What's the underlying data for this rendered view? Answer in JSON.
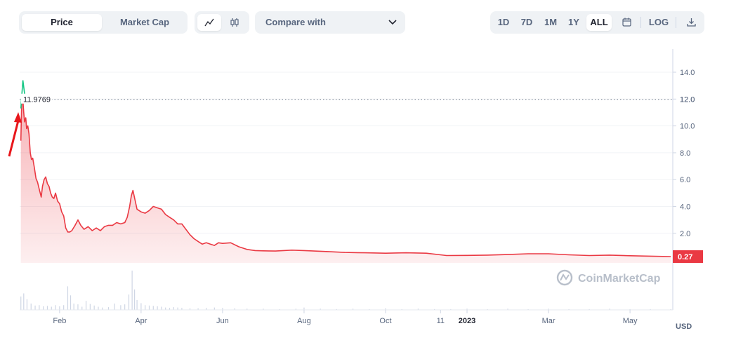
{
  "toolbar": {
    "view_tabs": [
      {
        "label": "Price",
        "active": true
      },
      {
        "label": "Market Cap",
        "active": false
      }
    ],
    "chart_types": [
      {
        "icon": "line-chart-icon",
        "active": true
      },
      {
        "icon": "candlestick-icon",
        "active": false
      }
    ],
    "compare_label": "Compare with",
    "ranges": [
      {
        "label": "1D",
        "active": false
      },
      {
        "label": "7D",
        "active": false
      },
      {
        "label": "1M",
        "active": false
      },
      {
        "label": "1Y",
        "active": false
      },
      {
        "label": "ALL",
        "active": true
      }
    ],
    "calendar_icon": "calendar-icon",
    "log_label": "LOG",
    "download_icon": "download-icon"
  },
  "colors": {
    "line": "#ea3943",
    "up": "#16c784",
    "fill": "#ea3943",
    "price_tag": "#ea3943",
    "volume": "#cfd6e4",
    "arrow": "#e8161b"
  },
  "watermark": "CoinMarketCap",
  "chart_data": {
    "type": "area",
    "currency_label": "USD",
    "y_ticks": [
      "14.0",
      "12.0",
      "10.0",
      "8.0",
      "6.0",
      "4.0",
      "2.0"
    ],
    "y_tick_values": [
      14,
      12,
      10,
      8,
      6,
      4,
      2
    ],
    "ylim": [
      -0.2,
      15.2
    ],
    "x_ticks": [
      {
        "label": "Feb",
        "x": 1.0,
        "bold": false
      },
      {
        "label": "Apr",
        "x": 3.0,
        "bold": false
      },
      {
        "label": "Jun",
        "x": 5.0,
        "bold": false
      },
      {
        "label": "Aug",
        "x": 7.0,
        "bold": false
      },
      {
        "label": "Oct",
        "x": 9.0,
        "bold": false
      },
      {
        "label": "11",
        "x": 10.35,
        "bold": false
      },
      {
        "label": "2023",
        "x": 11.0,
        "bold": true
      },
      {
        "label": "Mar",
        "x": 13.0,
        "bold": false
      },
      {
        "label": "May",
        "x": 15.0,
        "bold": false
      }
    ],
    "xlim": [
      0.02,
      16.05
    ],
    "reference_value": 11.9769,
    "reference_label": "11.9769",
    "current_value": 0.27,
    "current_label": "0.27",
    "start_green": [
      [
        0.05,
        11.3
      ],
      [
        0.1,
        13.4
      ],
      [
        0.15,
        12.2
      ]
    ],
    "series": [
      {
        "values": [
          [
            0.05,
            8.9
          ],
          [
            0.07,
            11.8
          ],
          [
            0.1,
            11.9
          ],
          [
            0.12,
            11.0
          ],
          [
            0.14,
            10.3
          ],
          [
            0.17,
            10.6
          ],
          [
            0.19,
            9.8
          ],
          [
            0.22,
            10.0
          ],
          [
            0.25,
            9.4
          ],
          [
            0.28,
            8.0
          ],
          [
            0.31,
            7.5
          ],
          [
            0.34,
            7.6
          ],
          [
            0.38,
            6.9
          ],
          [
            0.42,
            6.1
          ],
          [
            0.46,
            5.8
          ],
          [
            0.5,
            5.3
          ],
          [
            0.55,
            4.7
          ],
          [
            0.58,
            5.5
          ],
          [
            0.62,
            6.0
          ],
          [
            0.66,
            6.2
          ],
          [
            0.7,
            5.7
          ],
          [
            0.74,
            5.5
          ],
          [
            0.78,
            5.0
          ],
          [
            0.82,
            4.7
          ],
          [
            0.86,
            4.6
          ],
          [
            0.9,
            5.0
          ],
          [
            0.95,
            4.4
          ],
          [
            1.0,
            4.2
          ],
          [
            1.05,
            3.6
          ],
          [
            1.1,
            3.3
          ],
          [
            1.15,
            2.4
          ],
          [
            1.2,
            2.1
          ],
          [
            1.25,
            2.1
          ],
          [
            1.3,
            2.2
          ],
          [
            1.38,
            2.6
          ],
          [
            1.45,
            3.0
          ],
          [
            1.52,
            2.6
          ],
          [
            1.6,
            2.3
          ],
          [
            1.7,
            2.5
          ],
          [
            1.8,
            2.2
          ],
          [
            1.9,
            2.4
          ],
          [
            2.0,
            2.2
          ],
          [
            2.1,
            2.5
          ],
          [
            2.2,
            2.6
          ],
          [
            2.3,
            2.6
          ],
          [
            2.4,
            2.8
          ],
          [
            2.5,
            2.7
          ],
          [
            2.6,
            2.8
          ],
          [
            2.66,
            3.2
          ],
          [
            2.72,
            4.0
          ],
          [
            2.76,
            4.8
          ],
          [
            2.8,
            5.2
          ],
          [
            2.85,
            4.5
          ],
          [
            2.9,
            3.8
          ],
          [
            3.0,
            3.6
          ],
          [
            3.1,
            3.5
          ],
          [
            3.2,
            3.7
          ],
          [
            3.3,
            4.0
          ],
          [
            3.4,
            3.9
          ],
          [
            3.5,
            3.8
          ],
          [
            3.6,
            3.4
          ],
          [
            3.7,
            3.2
          ],
          [
            3.8,
            3.0
          ],
          [
            3.9,
            2.7
          ],
          [
            4.0,
            2.7
          ],
          [
            4.1,
            2.3
          ],
          [
            4.2,
            1.9
          ],
          [
            4.3,
            1.6
          ],
          [
            4.4,
            1.4
          ],
          [
            4.5,
            1.2
          ],
          [
            4.6,
            1.3
          ],
          [
            4.7,
            1.2
          ],
          [
            4.8,
            1.1
          ],
          [
            4.9,
            1.3
          ],
          [
            5.0,
            1.25
          ],
          [
            5.2,
            1.3
          ],
          [
            5.4,
            1.0
          ],
          [
            5.6,
            0.8
          ],
          [
            5.8,
            0.72
          ],
          [
            6.0,
            0.7
          ],
          [
            6.3,
            0.68
          ],
          [
            6.7,
            0.75
          ],
          [
            7.0,
            0.72
          ],
          [
            7.5,
            0.65
          ],
          [
            8.0,
            0.58
          ],
          [
            8.5,
            0.55
          ],
          [
            9.0,
            0.52
          ],
          [
            9.5,
            0.55
          ],
          [
            10.0,
            0.52
          ],
          [
            10.5,
            0.35
          ],
          [
            11.0,
            0.36
          ],
          [
            11.5,
            0.38
          ],
          [
            12.0,
            0.42
          ],
          [
            12.5,
            0.48
          ],
          [
            13.0,
            0.48
          ],
          [
            13.5,
            0.4
          ],
          [
            14.0,
            0.35
          ],
          [
            14.5,
            0.38
          ],
          [
            15.0,
            0.33
          ],
          [
            15.5,
            0.3
          ],
          [
            16.0,
            0.27
          ]
        ]
      }
    ],
    "volume": [
      [
        0.05,
        0.34
      ],
      [
        0.12,
        0.42
      ],
      [
        0.2,
        0.27
      ],
      [
        0.3,
        0.16
      ],
      [
        0.4,
        0.11
      ],
      [
        0.5,
        0.12
      ],
      [
        0.6,
        0.09
      ],
      [
        0.7,
        0.1
      ],
      [
        0.8,
        0.08
      ],
      [
        0.9,
        0.12
      ],
      [
        1.0,
        0.09
      ],
      [
        1.1,
        0.12
      ],
      [
        1.2,
        0.6
      ],
      [
        1.27,
        0.37
      ],
      [
        1.35,
        0.16
      ],
      [
        1.45,
        0.14
      ],
      [
        1.55,
        0.08
      ],
      [
        1.65,
        0.23
      ],
      [
        1.75,
        0.15
      ],
      [
        1.85,
        0.11
      ],
      [
        1.95,
        0.08
      ],
      [
        2.05,
        0.06
      ],
      [
        2.2,
        0.07
      ],
      [
        2.35,
        0.16
      ],
      [
        2.5,
        0.12
      ],
      [
        2.6,
        0.14
      ],
      [
        2.7,
        0.39
      ],
      [
        2.78,
        1.0
      ],
      [
        2.84,
        0.52
      ],
      [
        2.9,
        0.25
      ],
      [
        3.0,
        0.17
      ],
      [
        3.1,
        0.12
      ],
      [
        3.2,
        0.11
      ],
      [
        3.3,
        0.1
      ],
      [
        3.4,
        0.09
      ],
      [
        3.5,
        0.08
      ],
      [
        3.6,
        0.06
      ],
      [
        3.7,
        0.05
      ],
      [
        3.8,
        0.07
      ],
      [
        3.9,
        0.06
      ],
      [
        4.0,
        0.05
      ],
      [
        4.2,
        0.04
      ],
      [
        4.4,
        0.04
      ],
      [
        4.6,
        0.05
      ],
      [
        4.8,
        0.06
      ],
      [
        5.0,
        0.05
      ],
      [
        5.3,
        0.04
      ],
      [
        5.6,
        0.03
      ],
      [
        6.0,
        0.03
      ],
      [
        6.4,
        0.02
      ],
      [
        6.8,
        0.03
      ],
      [
        7.0,
        0.06
      ],
      [
        7.4,
        0.03
      ],
      [
        7.8,
        0.02
      ],
      [
        8.2,
        0.03
      ],
      [
        8.6,
        0.02
      ],
      [
        9.0,
        0.04
      ],
      [
        9.4,
        0.02
      ],
      [
        9.8,
        0.03
      ],
      [
        10.2,
        0.02
      ],
      [
        10.6,
        0.02
      ],
      [
        11.0,
        0.03
      ],
      [
        11.5,
        0.02
      ],
      [
        12.0,
        0.03
      ],
      [
        12.5,
        0.02
      ],
      [
        13.0,
        0.03
      ],
      [
        13.5,
        0.02
      ],
      [
        14.0,
        0.02
      ],
      [
        14.5,
        0.03
      ],
      [
        15.0,
        0.02
      ],
      [
        15.5,
        0.02
      ],
      [
        16.0,
        0.02
      ]
    ]
  }
}
